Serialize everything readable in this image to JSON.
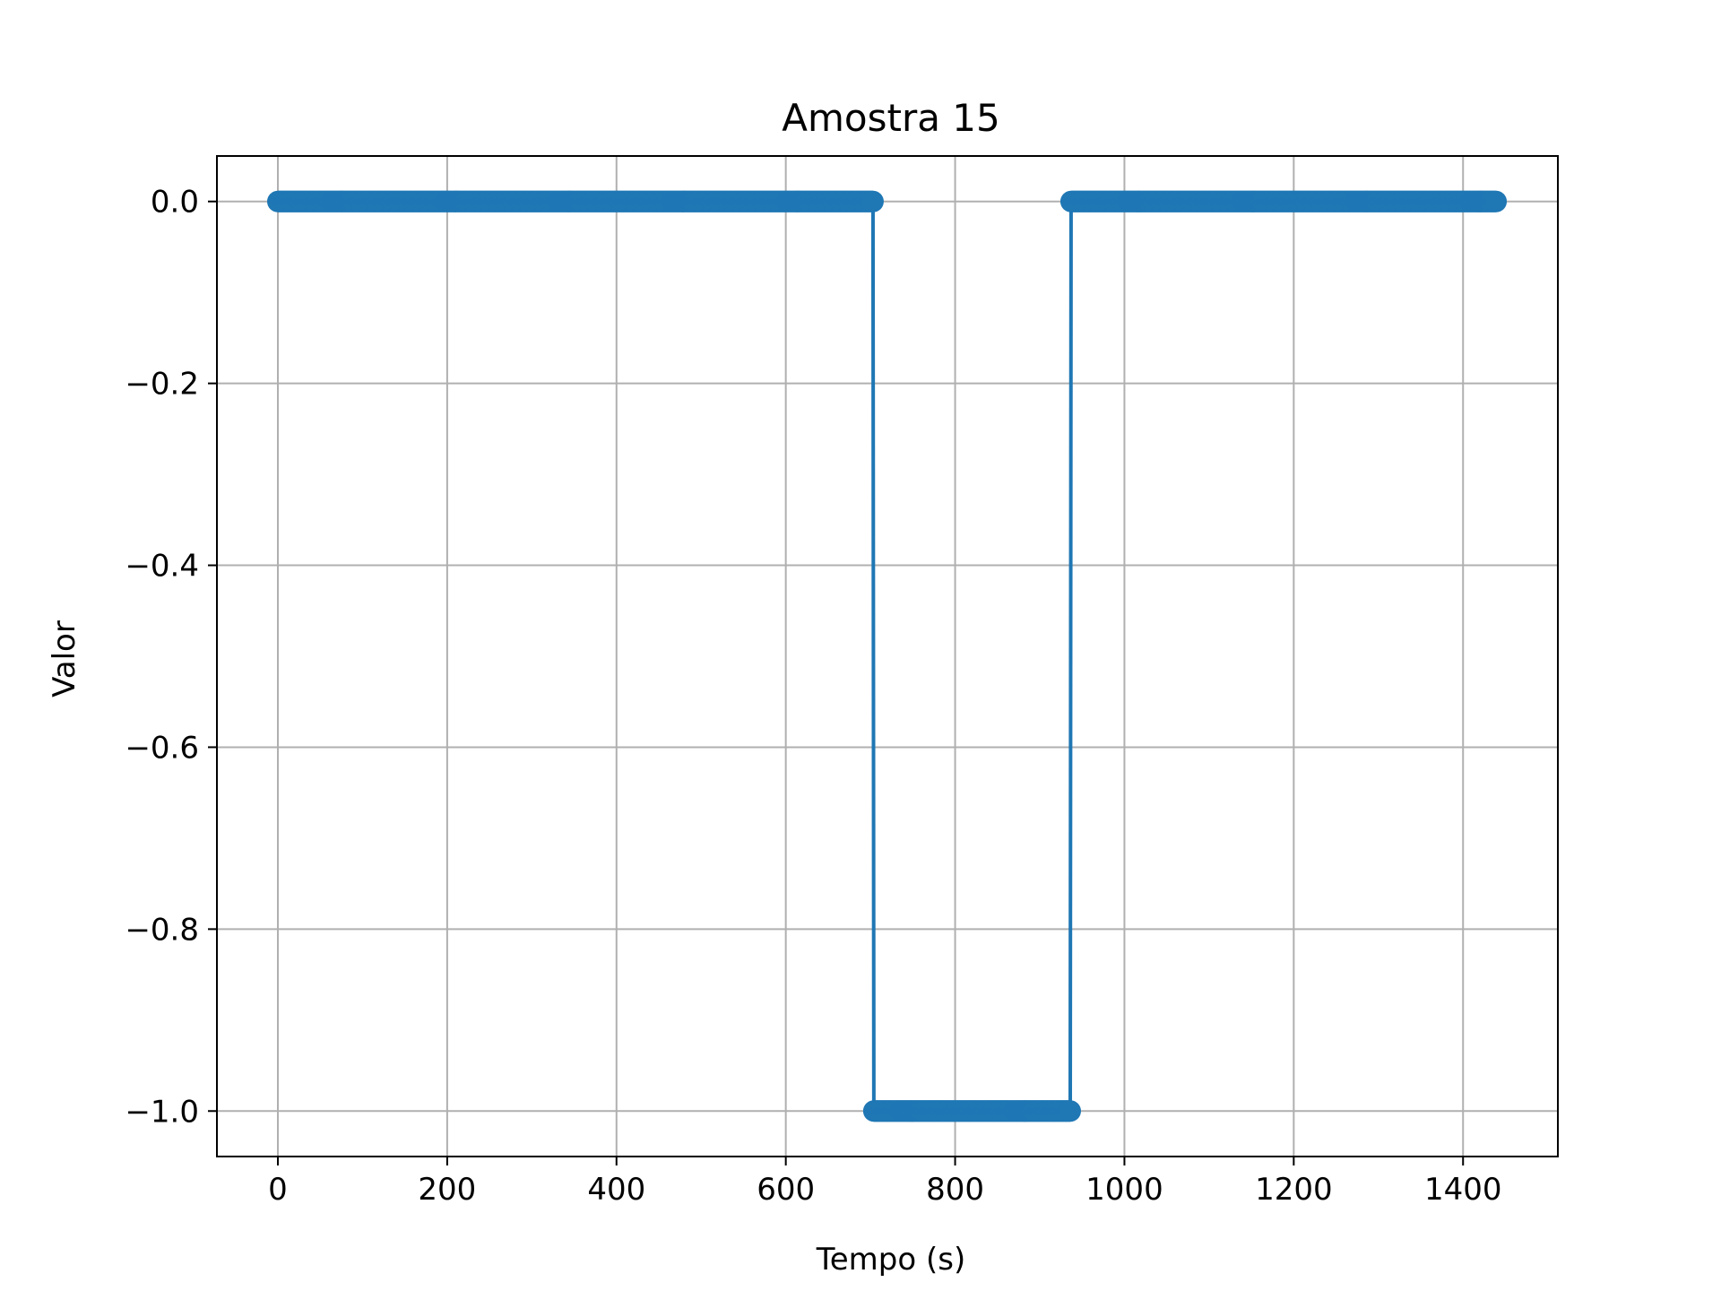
{
  "chart_data": {
    "type": "line",
    "title": "Amostra 15",
    "xlabel": "Tempo (s)",
    "ylabel": "Valor",
    "xlim": [
      -72,
      1512
    ],
    "ylim": [
      -1.05,
      0.05
    ],
    "x_ticks": [
      0,
      200,
      400,
      600,
      800,
      1000,
      1200,
      1400
    ],
    "x_tick_labels": [
      "0",
      "200",
      "400",
      "600",
      "800",
      "1000",
      "1200",
      "1400"
    ],
    "y_ticks": [
      0.0,
      -0.2,
      -0.4,
      -0.6,
      -0.8,
      -1.0
    ],
    "y_tick_labels": [
      "0.0",
      "−0.2",
      "−0.4",
      "−0.6",
      "−0.8",
      "−1.0"
    ],
    "grid": true,
    "series": [
      {
        "color": "#1f77b4",
        "marker": "circle",
        "sample_interval": 1,
        "segments": [
          {
            "x_start": 0,
            "x_end": 703,
            "y": 0.0
          },
          {
            "x_start": 704,
            "x_end": 936,
            "y": -1.0
          },
          {
            "x_start": 937,
            "x_end": 1439,
            "y": 0.0
          }
        ]
      }
    ]
  }
}
